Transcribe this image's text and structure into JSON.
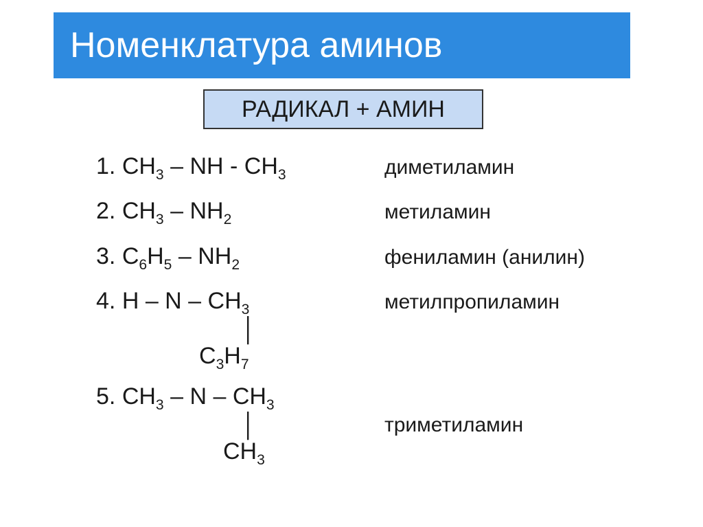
{
  "title": "Номенклатура аминов",
  "subtitle": "РАДИКАЛ + АМИН",
  "colors": {
    "title_bg": "#2e8adf",
    "title_text": "#ffffff",
    "subtitle_bg": "#c6daf4",
    "subtitle_text": "#1a1a1a",
    "body_text": "#1a1a1a",
    "page_bg": "#ffffff"
  },
  "typography": {
    "title_fontsize": 52,
    "subtitle_fontsize": 34,
    "formula_fontsize": 34,
    "name_fontsize": 30
  },
  "items": [
    {
      "num": "1.",
      "formula_parts": [
        "CH",
        "3",
        " – NH - CH",
        "3"
      ],
      "name": "диметиламин",
      "branch": null
    },
    {
      "num": "2.",
      "formula_parts": [
        "CH",
        "3",
        " – NH",
        "2"
      ],
      "name": "метиламин",
      "branch": null
    },
    {
      "num": "3.",
      "formula_parts": [
        "C",
        "6",
        "H",
        "5",
        " – NH",
        "2"
      ],
      "name": "фениламин (анилин)",
      "branch": null
    },
    {
      "num": "4.",
      "formula_parts": [
        "H – N – CH",
        "3"
      ],
      "name": "метилпропиламин",
      "branch": {
        "parts": [
          "C",
          "3",
          "H",
          "7"
        ],
        "indent_class": "indent1",
        "bar_indent_class": "indent2"
      }
    },
    {
      "num": "5.",
      "formula_parts": [
        "CH",
        "3",
        " – N – CH",
        "3"
      ],
      "name": "триметиламин",
      "branch": {
        "parts": [
          "CH",
          "3"
        ],
        "indent_class": "indent3",
        "bar_indent_class": "indent2"
      }
    }
  ]
}
